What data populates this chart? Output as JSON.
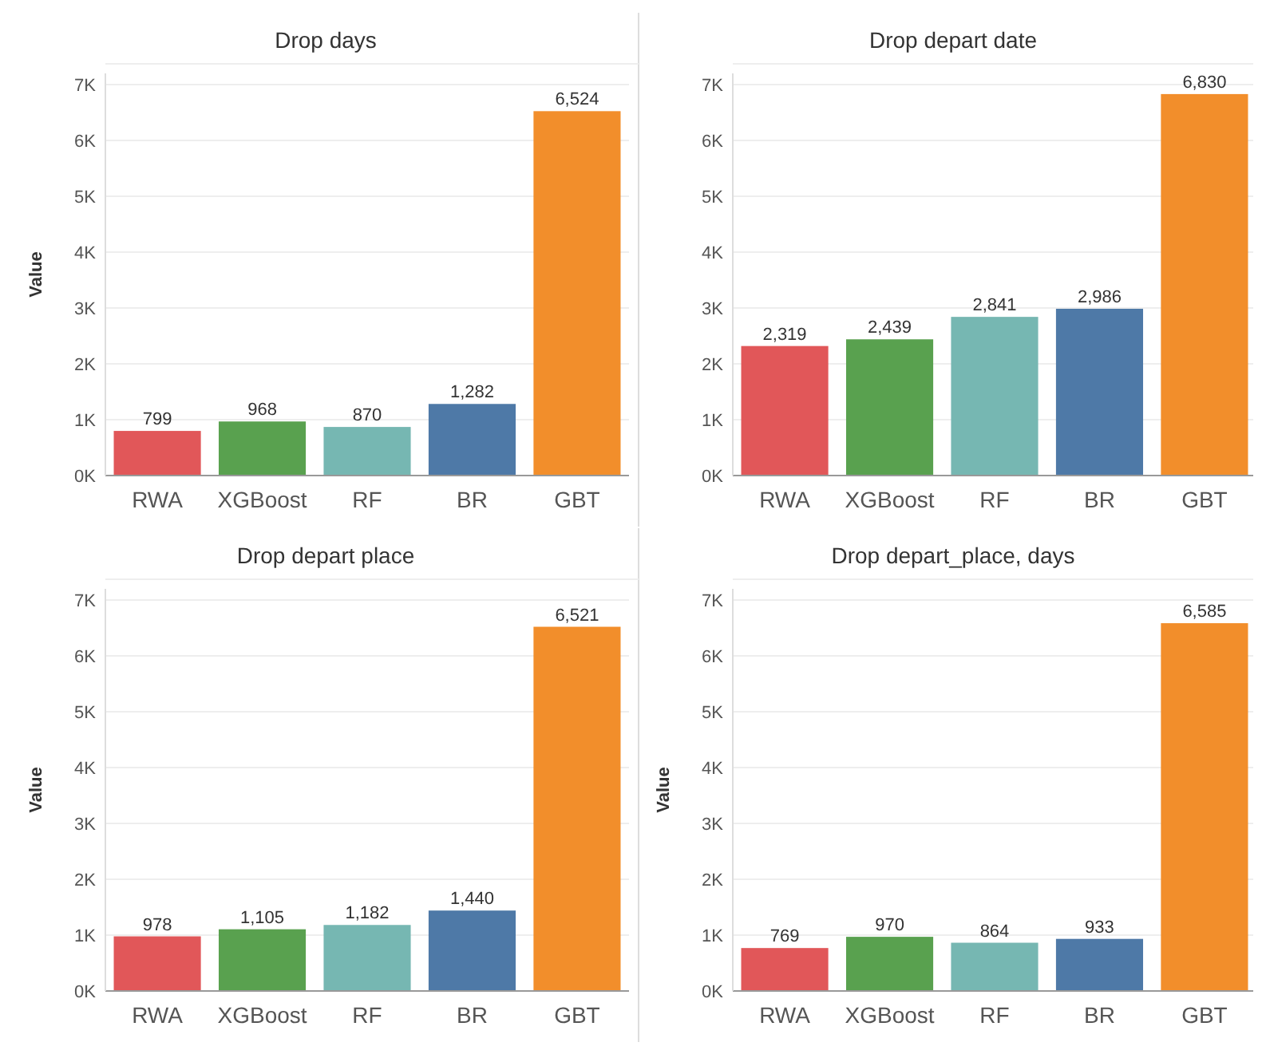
{
  "chart_data": [
    {
      "type": "bar",
      "title": "Drop days",
      "ylabel": "Value",
      "categories": [
        "RWA",
        "XGBoost",
        "RF",
        "BR",
        "GBT"
      ],
      "values": [
        799,
        968,
        870,
        1282,
        6524
      ],
      "value_labels": [
        "799",
        "968",
        "870",
        "1,282",
        "6,524"
      ],
      "colors": [
        "#e15759",
        "#59a14f",
        "#76b7b2",
        "#4e79a7",
        "#f28e2b"
      ],
      "ylim": [
        0,
        7200
      ],
      "yticks": [
        {
          "value": 0,
          "label": "0K"
        },
        {
          "value": 1000,
          "label": "1K"
        },
        {
          "value": 2000,
          "label": "2K"
        },
        {
          "value": 3000,
          "label": "3K"
        },
        {
          "value": 4000,
          "label": "4K"
        },
        {
          "value": 5000,
          "label": "5K"
        },
        {
          "value": 6000,
          "label": "6K"
        },
        {
          "value": 7000,
          "label": "7K"
        }
      ],
      "grid": "y"
    },
    {
      "type": "bar",
      "title": "Drop depart date",
      "categories": [
        "RWA",
        "XGBoost",
        "RF",
        "BR",
        "GBT"
      ],
      "values": [
        2319,
        2439,
        2841,
        2986,
        6830
      ],
      "value_labels": [
        "2,319",
        "2,439",
        "2,841",
        "2,986",
        "6,830"
      ],
      "colors": [
        "#e15759",
        "#59a14f",
        "#76b7b2",
        "#4e79a7",
        "#f28e2b"
      ],
      "ylim": [
        0,
        7200
      ],
      "yticks": [
        {
          "value": 0,
          "label": "0K"
        },
        {
          "value": 1000,
          "label": "1K"
        },
        {
          "value": 2000,
          "label": "2K"
        },
        {
          "value": 3000,
          "label": "3K"
        },
        {
          "value": 4000,
          "label": "4K"
        },
        {
          "value": 5000,
          "label": "5K"
        },
        {
          "value": 6000,
          "label": "6K"
        },
        {
          "value": 7000,
          "label": "7K"
        }
      ],
      "grid": "y"
    },
    {
      "type": "bar",
      "title": "Drop depart place",
      "ylabel": "Value",
      "categories": [
        "RWA",
        "XGBoost",
        "RF",
        "BR",
        "GBT"
      ],
      "values": [
        978,
        1105,
        1182,
        1440,
        6521
      ],
      "value_labels": [
        "978",
        "1,105",
        "1,182",
        "1,440",
        "6,521"
      ],
      "colors": [
        "#e15759",
        "#59a14f",
        "#76b7b2",
        "#4e79a7",
        "#f28e2b"
      ],
      "ylim": [
        0,
        7200
      ],
      "yticks": [
        {
          "value": 0,
          "label": "0K"
        },
        {
          "value": 1000,
          "label": "1K"
        },
        {
          "value": 2000,
          "label": "2K"
        },
        {
          "value": 3000,
          "label": "3K"
        },
        {
          "value": 4000,
          "label": "4K"
        },
        {
          "value": 5000,
          "label": "5K"
        },
        {
          "value": 6000,
          "label": "6K"
        },
        {
          "value": 7000,
          "label": "7K"
        }
      ],
      "grid": "y"
    },
    {
      "type": "bar",
      "title": "Drop depart_place, days",
      "ylabel": "Value",
      "categories": [
        "RWA",
        "XGBoost",
        "RF",
        "BR",
        "GBT"
      ],
      "values": [
        769,
        970,
        864,
        933,
        6585
      ],
      "value_labels": [
        "769",
        "970",
        "864",
        "933",
        "6,585"
      ],
      "colors": [
        "#e15759",
        "#59a14f",
        "#76b7b2",
        "#4e79a7",
        "#f28e2b"
      ],
      "ylim": [
        0,
        7200
      ],
      "yticks": [
        {
          "value": 0,
          "label": "0K"
        },
        {
          "value": 1000,
          "label": "1K"
        },
        {
          "value": 2000,
          "label": "2K"
        },
        {
          "value": 3000,
          "label": "3K"
        },
        {
          "value": 4000,
          "label": "4K"
        },
        {
          "value": 5000,
          "label": "5K"
        },
        {
          "value": 6000,
          "label": "6K"
        },
        {
          "value": 7000,
          "label": "7K"
        }
      ],
      "grid": "y"
    }
  ]
}
